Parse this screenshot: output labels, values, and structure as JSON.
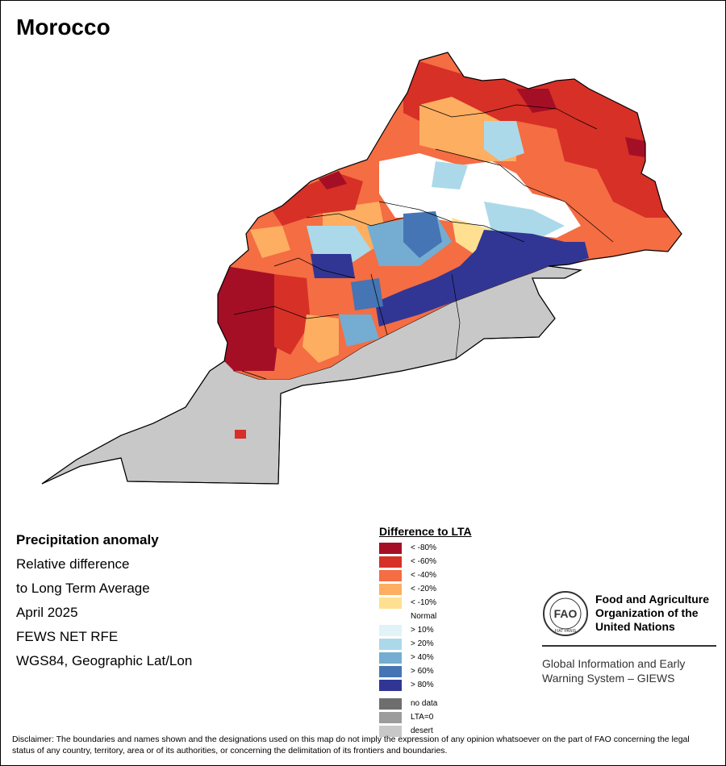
{
  "title": "Morocco",
  "info": {
    "heading": "Precipitation anomaly",
    "lines": [
      "Relative difference",
      "to Long Term Average",
      "April 2025",
      "FEWS NET RFE",
      "WGS84, Geographic Lat/Lon"
    ]
  },
  "legend": {
    "title": "Difference to LTA",
    "classes": [
      {
        "label": "< -80%",
        "color": "#a50f26"
      },
      {
        "label": "< -60%",
        "color": "#d73027"
      },
      {
        "label": "< -40%",
        "color": "#f46d43"
      },
      {
        "label": "< -20%",
        "color": "#fdae61"
      },
      {
        "label": "< -10%",
        "color": "#fee090"
      },
      {
        "label": "Normal",
        "color": "#ffffff"
      },
      {
        "label": "> 10%",
        "color": "#e0f3f8"
      },
      {
        "label": "> 20%",
        "color": "#abd9e9"
      },
      {
        "label": "> 40%",
        "color": "#74add1"
      },
      {
        "label": "> 60%",
        "color": "#4575b4"
      },
      {
        "label": "> 80%",
        "color": "#313695"
      }
    ],
    "extra": [
      {
        "label": "no data",
        "color": "#6e6e6e"
      },
      {
        "label": "LTA=0",
        "color": "#9c9c9c"
      },
      {
        "label": "desert",
        "color": "#c8c8c8"
      }
    ]
  },
  "fao": {
    "name_lines": [
      "Food and Agriculture",
      "Organization of the",
      "United Nations"
    ],
    "logo_text": "FAO",
    "logo_motto": "FIAT PANIS"
  },
  "giews": {
    "lines": [
      "Global Information and Early",
      "Warning System – GIEWS"
    ]
  },
  "disclaimer": "Disclaimer: The boundaries and names shown and the designations used on this map do not imply the expression of any opinion whatsoever on the part of FAO concerning the legal status of any country, territory, area or of its authorities, or concerning the delimitation of its frontiers and boundaries."
}
